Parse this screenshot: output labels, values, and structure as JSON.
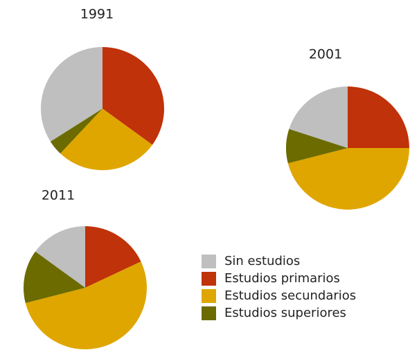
{
  "chart_data": [
    {
      "type": "pie",
      "title": "1991",
      "categories": [
        "Sin estudios",
        "Estudios primarios",
        "Estudios secundarios",
        "Estudios superiores"
      ],
      "values": [
        34,
        35,
        27,
        4
      ],
      "colors": [
        "#bfbfbf",
        "#c0320a",
        "#dfa600",
        "#6b6b00"
      ]
    },
    {
      "type": "pie",
      "title": "2001",
      "categories": [
        "Sin estudios",
        "Estudios primarios",
        "Estudios secundarios",
        "Estudios superiores"
      ],
      "values": [
        20,
        25,
        46,
        9
      ],
      "colors": [
        "#bfbfbf",
        "#c0320a",
        "#dfa600",
        "#6b6b00"
      ]
    },
    {
      "type": "pie",
      "title": "2011",
      "categories": [
        "Sin estudios",
        "Estudios primarios",
        "Estudios secundarios",
        "Estudios superiores"
      ],
      "values": [
        15,
        18,
        53,
        14
      ],
      "colors": [
        "#bfbfbf",
        "#c0320a",
        "#dfa600",
        "#6b6b00"
      ]
    }
  ]
}
